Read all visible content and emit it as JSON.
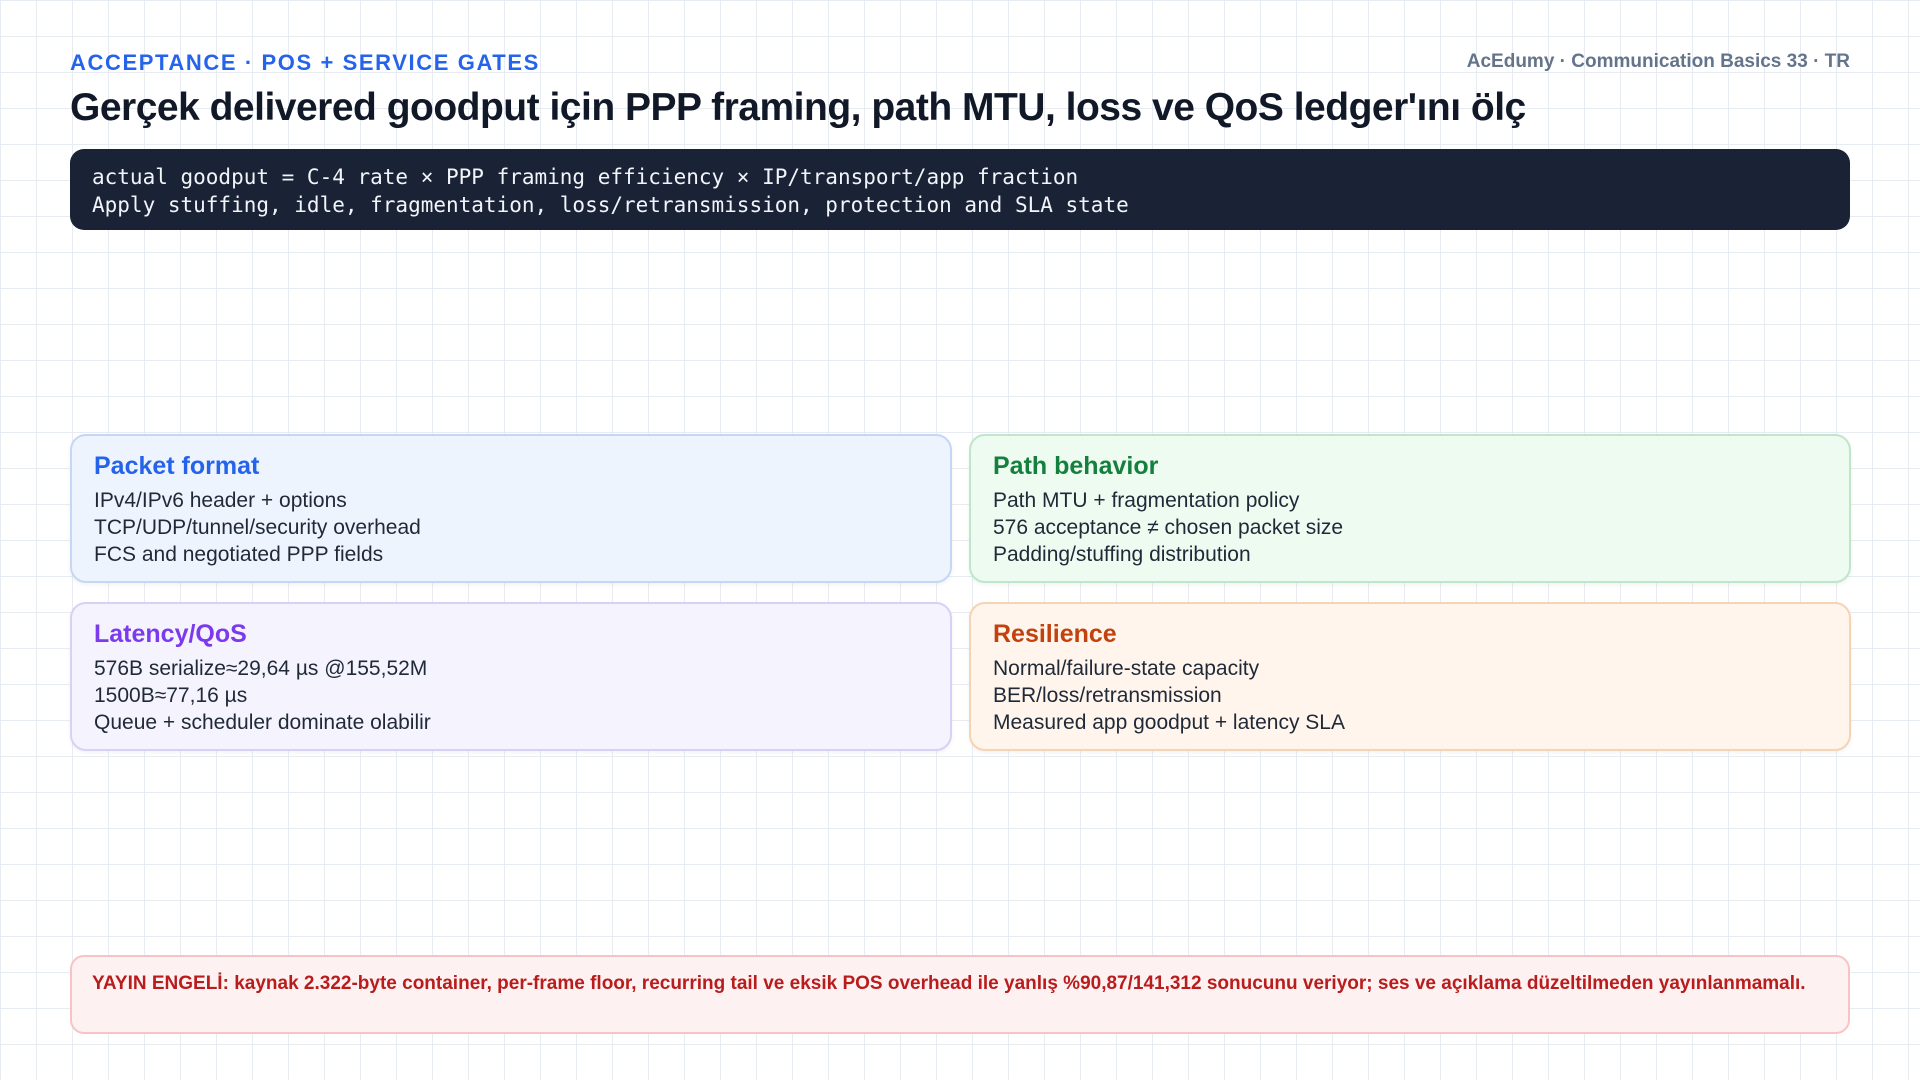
{
  "header": {
    "eyebrow": "ACCEPTANCE · POS + SERVICE GATES",
    "brand": "AcEdumy · Communication Basics 33 · TR",
    "title": "Gerçek delivered goodput için PPP framing, path MTU, loss ve QoS ledger'ını ölç"
  },
  "formula": {
    "lines": [
      "actual goodput = C-4 rate × PPP framing efficiency × IP/transport/app fraction",
      "Apply stuffing, idle, fragmentation, loss/retransmission, protection and SLA state"
    ]
  },
  "cards": [
    {
      "title": "Packet format",
      "color": "#2563eb",
      "lines": [
        "IPv4/IPv6 header + options",
        "TCP/UDP/tunnel/security overhead",
        "FCS and negotiated PPP fields"
      ]
    },
    {
      "title": "Path behavior",
      "color": "#15803d",
      "lines": [
        "Path MTU + fragmentation policy",
        "576 acceptance ≠ chosen packet size",
        "Padding/stuffing distribution"
      ]
    },
    {
      "title": "Latency/QoS",
      "color": "#7c3aed",
      "lines": [
        "576B serialize≈29,64 µs @155,52M",
        "1500B≈77,16 µs",
        "Queue + scheduler dominate olabilir"
      ]
    },
    {
      "title": "Resilience",
      "color": "#c2410c",
      "lines": [
        "Normal/failure-state capacity",
        "BER/loss/retransmission",
        "Measured app goodput + latency SLA"
      ]
    }
  ],
  "warning": {
    "text": "YAYIN ENGELİ: kaynak 2.322-byte container, per-frame floor, recurring tail ve eksik POS overhead ile yanlış %90,87/141,312 sonucunu veriyor; ses ve açıklama düzeltilmeden yayınlanmamalı."
  }
}
